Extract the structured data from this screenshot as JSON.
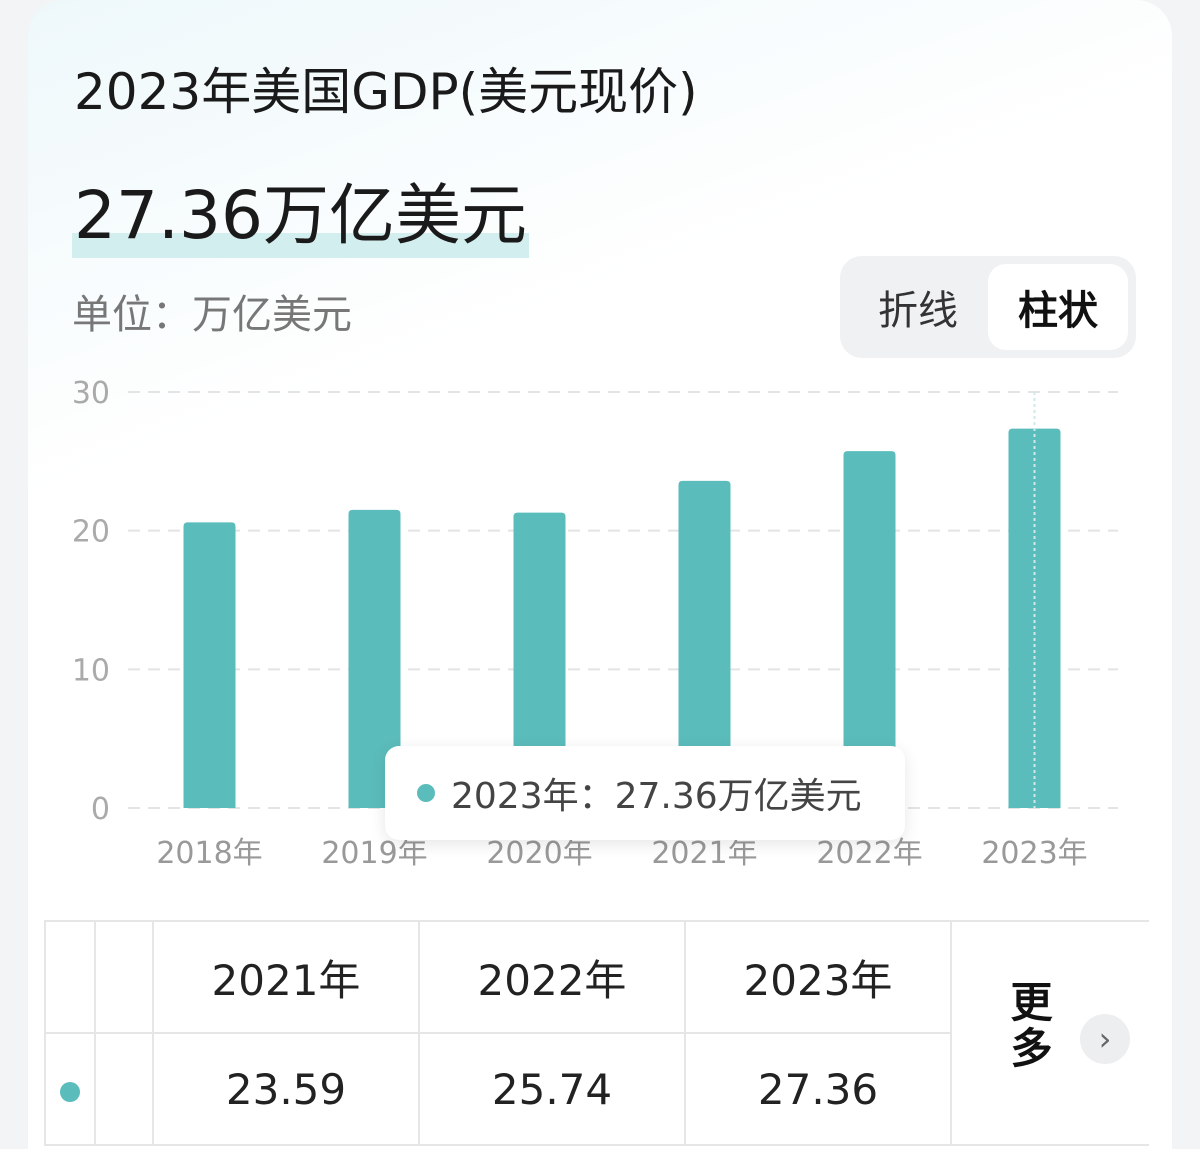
{
  "title": "2023年美国GDP(美元现价)",
  "headline_value": "27.36万亿美元",
  "unit_label": "单位：万亿美元",
  "toggle": {
    "options": [
      "折线",
      "柱状"
    ],
    "selected": "柱状"
  },
  "colors": {
    "bar": "#5bbcbc",
    "grid": "#e4e4e4",
    "tick": "#999999"
  },
  "chart_data": {
    "type": "bar",
    "categories": [
      "2018年",
      "2019年",
      "2020年",
      "2021年",
      "2022年",
      "2023年"
    ],
    "values": [
      20.6,
      21.5,
      21.3,
      23.59,
      25.74,
      27.36
    ],
    "yticks": [
      0,
      10,
      20,
      30
    ],
    "ylim": [
      0,
      30
    ],
    "grid": true,
    "highlighted_category": "2023年"
  },
  "tooltip": {
    "label": "2023年：27.36万亿美元"
  },
  "table": {
    "headers": [
      "2021年",
      "2022年",
      "2023年"
    ],
    "values": [
      "23.59",
      "25.74",
      "27.36"
    ],
    "more_label": "更多"
  }
}
